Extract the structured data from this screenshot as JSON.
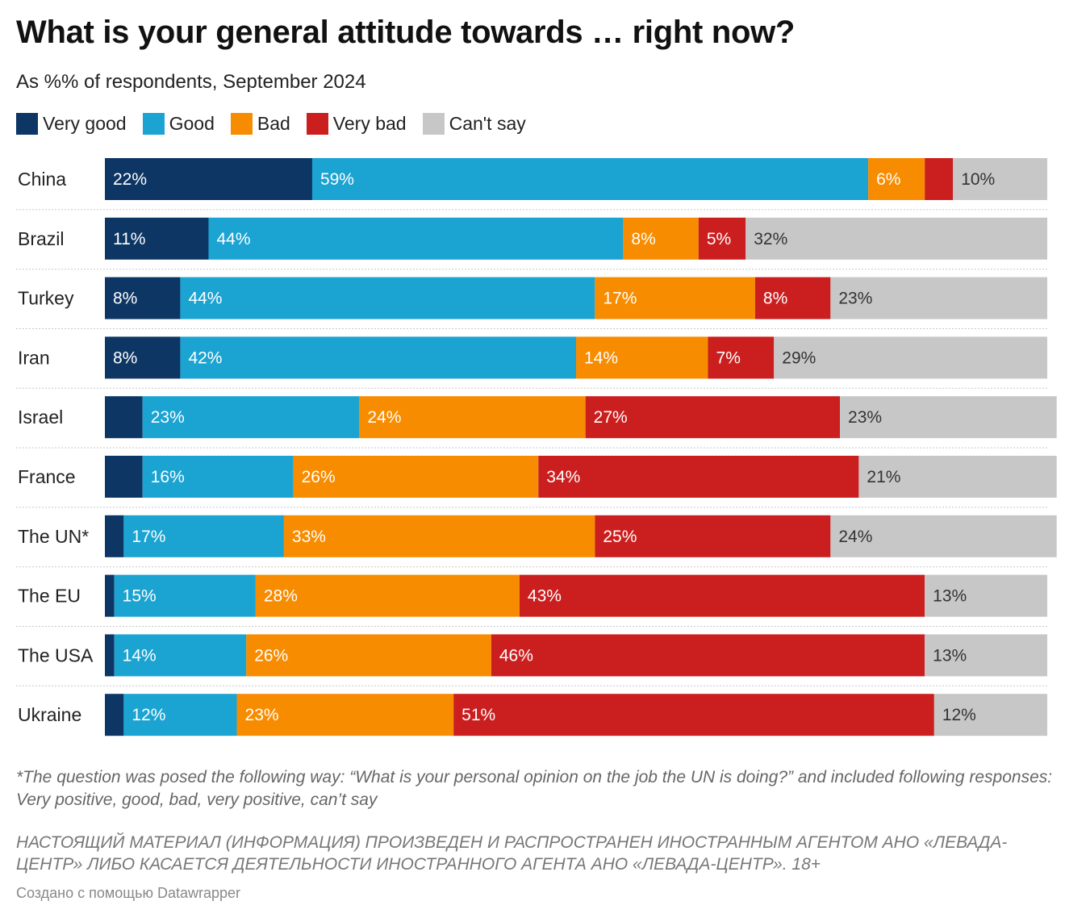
{
  "chart_data": {
    "type": "bar",
    "orientation": "horizontal",
    "stacked": true,
    "title": "What is your general attitude towards … right now?",
    "subtitle": "As %% of respondents, September 2024",
    "categories": [
      "China",
      "Brazil",
      "Turkey",
      "Iran",
      "Israel",
      "France",
      "The UN*",
      "The EU",
      "The USA",
      "Ukraine"
    ],
    "series": [
      {
        "name": "Very good",
        "color": "#0d3664",
        "values": [
          22,
          11,
          8,
          8,
          4,
          4,
          2,
          1,
          1,
          2
        ],
        "labels": [
          "22%",
          "11%",
          "8%",
          "8%",
          "",
          "",
          "",
          "",
          "",
          ""
        ]
      },
      {
        "name": "Good",
        "color": "#1ba3d2",
        "values": [
          59,
          44,
          44,
          42,
          23,
          16,
          17,
          15,
          14,
          12
        ],
        "labels": [
          "59%",
          "44%",
          "44%",
          "42%",
          "23%",
          "16%",
          "17%",
          "15%",
          "14%",
          "12%"
        ]
      },
      {
        "name": "Bad",
        "color": "#f88c00",
        "values": [
          6,
          8,
          17,
          14,
          24,
          26,
          33,
          28,
          26,
          23
        ],
        "labels": [
          "6%",
          "8%",
          "17%",
          "14%",
          "24%",
          "26%",
          "33%",
          "28%",
          "26%",
          "23%"
        ]
      },
      {
        "name": "Very bad",
        "color": "#cb1f1f",
        "values": [
          3,
          5,
          8,
          7,
          27,
          34,
          25,
          43,
          46,
          51
        ],
        "labels": [
          "",
          "5%",
          "8%",
          "7%",
          "27%",
          "34%",
          "25%",
          "43%",
          "46%",
          "51%"
        ]
      },
      {
        "name": "Can't say",
        "color": "#c7c7c7",
        "values": [
          10,
          32,
          23,
          29,
          23,
          21,
          24,
          13,
          13,
          12
        ],
        "labels": [
          "10%",
          "32%",
          "23%",
          "29%",
          "23%",
          "21%",
          "24%",
          "13%",
          "13%",
          "12%"
        ]
      }
    ],
    "xlim": [
      0,
      100
    ],
    "grid": false,
    "legend": "top-left"
  },
  "footnote": "*The question was posed the following way: “What is your personal opinion on the job the UN is doing?” and included following responses: Very positive, good, bad, very positive, can’t say",
  "notice": "НАСТОЯЩИЙ МАТЕРИАЛ (ИНФОРМАЦИЯ) ПРОИЗВЕДЕН И РАСПРОСТРАНЕН ИНОСТРАННЫМ АГЕНТОМ АНО «ЛЕВАДА-ЦЕНТР» ЛИБО КАСАЕТСЯ ДЕЯТЕЛЬНОСТИ ИНОСТРАННОГО АГЕНТА АНО «ЛЕВАДА-ЦЕНТР». 18+",
  "credit": "Создано с помощью Datawrapper"
}
